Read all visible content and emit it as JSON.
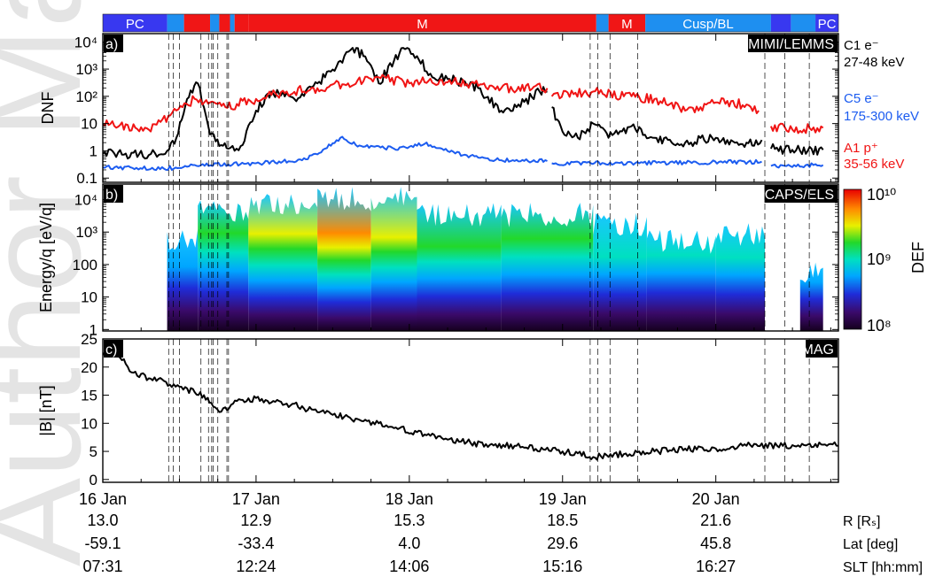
{
  "watermark": "Author Manuscript",
  "region_bar": [
    {
      "label": "PC",
      "start": 0.0,
      "end": 0.42,
      "color": "#3838f0"
    },
    {
      "label": "",
      "start": 0.42,
      "end": 0.53,
      "color": "#1e8ff0"
    },
    {
      "label": "",
      "start": 0.53,
      "end": 0.7,
      "color": "#f01616"
    },
    {
      "label": "",
      "start": 0.7,
      "end": 0.76,
      "color": "#1e8ff0"
    },
    {
      "label": "",
      "start": 0.76,
      "end": 0.83,
      "color": "#f01616"
    },
    {
      "label": "",
      "start": 0.83,
      "end": 0.86,
      "color": "#1e8ff0"
    },
    {
      "label": "",
      "start": 0.86,
      "end": 0.95,
      "color": "#f01616"
    },
    {
      "label": "M",
      "start": 0.95,
      "end": 3.22,
      "color": "#f01616"
    },
    {
      "label": "",
      "start": 3.22,
      "end": 3.3,
      "color": "#1e8ff0"
    },
    {
      "label": "M",
      "start": 3.3,
      "end": 3.54,
      "color": "#f01616"
    },
    {
      "label": "Cusp/BL",
      "start": 3.54,
      "end": 4.36,
      "color": "#1e8ff0"
    },
    {
      "label": "",
      "start": 4.36,
      "end": 4.49,
      "color": "#3838f0"
    },
    {
      "label": "",
      "start": 4.49,
      "end": 4.65,
      "color": "#1e8ff0"
    },
    {
      "label": "PC",
      "start": 4.65,
      "end": 4.8,
      "color": "#3838f0"
    }
  ],
  "event_lines": [
    0.43,
    0.46,
    0.5,
    0.64,
    0.69,
    0.71,
    0.72,
    0.75,
    0.81,
    0.82,
    3.18,
    3.23,
    3.31,
    3.49,
    4.32,
    4.45,
    4.61
  ],
  "panels": {
    "a": {
      "tag": "a)",
      "instrument": "MIMI/LEMMS",
      "ylabel": "DNF"
    },
    "b": {
      "tag": "b)",
      "instrument": "CAPS/ELS",
      "ylabel": "Energy/q [eV/q]",
      "colorbar_label": "DEF"
    },
    "c": {
      "tag": "c)",
      "instrument": "MAG",
      "ylabel": "|B| [nT]"
    }
  },
  "ephemeris": {
    "rows": [
      {
        "label": "R [Rₛ]",
        "values": [
          "13.0",
          "12.9",
          "15.3",
          "18.5",
          "21.6"
        ]
      },
      {
        "label": "Lat [deg]",
        "values": [
          "-59.1",
          "-33.4",
          "4.0",
          "29.6",
          "45.8"
        ]
      },
      {
        "label": "SLT [hh:mm]",
        "values": [
          "07:31",
          "12:24",
          "14:06",
          "15:16",
          "16:27"
        ]
      }
    ]
  },
  "chart_data": [
    {
      "type": "line",
      "panel": "a",
      "yscale": "log",
      "ylim": [
        0.07,
        20000
      ],
      "xlim": [
        0,
        4.8
      ],
      "x_unit": "days since 16 Jan",
      "yticks": [
        {
          "v": 0.1,
          "label": "0.1"
        },
        {
          "v": 1,
          "label": "1"
        },
        {
          "v": 10,
          "label": "10"
        },
        {
          "v": 100,
          "label": "10²"
        },
        {
          "v": 1000,
          "label": "10³"
        },
        {
          "v": 10000,
          "label": "10⁴"
        }
      ],
      "series": [
        {
          "name": "C1 e⁻",
          "range": "27-48 keV",
          "color": "#000000",
          "x": [
            0,
            0.3,
            0.42,
            0.48,
            0.55,
            0.62,
            0.66,
            0.7,
            0.76,
            0.82,
            0.9,
            1.0,
            1.1,
            1.25,
            1.4,
            1.55,
            1.63,
            1.7,
            1.8,
            1.9,
            1.96,
            2.05,
            2.15,
            2.3,
            2.45,
            2.6,
            2.7,
            2.85,
            2.9,
            null,
            2.93,
            3.0,
            3.1,
            3.2,
            3.3,
            3.45,
            3.6,
            3.8,
            4.0,
            4.2,
            4.3,
            null,
            4.36,
            4.6,
            4.7
          ],
          "y": [
            0.8,
            0.7,
            1.0,
            3,
            80,
            300,
            40,
            4,
            1.5,
            1.2,
            1.5,
            30,
            150,
            80,
            300,
            2000,
            6000,
            3000,
            300,
            2000,
            6000,
            3000,
            500,
            400,
            200,
            30,
            40,
            150,
            150,
            null,
            40,
            5,
            3,
            10,
            3,
            8,
            3,
            2,
            3,
            2,
            2.5,
            null,
            1.2,
            1.0,
            1.1
          ]
        },
        {
          "name": "C5 e⁻",
          "range": "175-300 keV",
          "color": "#1c5cf0",
          "x": [
            0,
            0.4,
            0.6,
            1.0,
            1.3,
            1.45,
            1.55,
            1.7,
            1.9,
            2.1,
            2.3,
            2.6,
            2.9,
            null,
            2.93,
            3.5,
            4.3,
            null,
            4.36,
            4.7
          ],
          "y": [
            0.25,
            0.22,
            0.3,
            0.35,
            0.45,
            1.2,
            3,
            1.4,
            1.2,
            1.8,
            0.8,
            0.45,
            0.42,
            null,
            0.35,
            0.35,
            0.4,
            null,
            0.28,
            0.3
          ]
        },
        {
          "name": "A1 p⁺",
          "range": "35-56 keV",
          "color": "#f01414",
          "x": [
            0,
            0.3,
            0.44,
            0.52,
            0.6,
            0.7,
            0.8,
            1.0,
            1.2,
            1.4,
            1.6,
            1.8,
            2.0,
            2.2,
            2.4,
            2.6,
            2.9,
            null,
            2.93,
            3.2,
            3.4,
            3.6,
            3.8,
            4.0,
            4.2,
            4.28,
            null,
            4.36,
            4.5,
            4.7
          ],
          "y": [
            10,
            6,
            20,
            40,
            80,
            60,
            40,
            80,
            150,
            200,
            300,
            500,
            300,
            400,
            300,
            200,
            200,
            null,
            100,
            150,
            100,
            80,
            30,
            60,
            50,
            30,
            null,
            8,
            6,
            7
          ]
        }
      ]
    },
    {
      "type": "heatmap",
      "panel": "b",
      "yscale": "log",
      "ylim": [
        0.9,
        30000
      ],
      "xlim": [
        0,
        4.8
      ],
      "x_unit": "days since 16 Jan",
      "yticks": [
        {
          "v": 1,
          "label": "1"
        },
        {
          "v": 10,
          "label": "10"
        },
        {
          "v": 100,
          "label": "100"
        },
        {
          "v": 1000,
          "label": "10³"
        },
        {
          "v": 10000,
          "label": "10⁴"
        }
      ],
      "colorbar": {
        "scale": "log",
        "range": [
          100000000.0,
          10000000000.0
        ],
        "ticks": [
          "10⁸",
          "10⁹",
          "10¹⁰"
        ]
      },
      "columns": [
        {
          "x": [
            0.42,
            0.62
          ],
          "top": 1500,
          "peak": 0.45
        },
        {
          "x": [
            0.62,
            0.95
          ],
          "top": 10000,
          "peak": 0.62
        },
        {
          "x": [
            0.95,
            1.4
          ],
          "top": 15000,
          "peak": 0.78
        },
        {
          "x": [
            1.4,
            1.75
          ],
          "top": 25000,
          "peak": 0.95
        },
        {
          "x": [
            1.75,
            2.05
          ],
          "top": 25000,
          "peak": 0.85
        },
        {
          "x": [
            2.05,
            2.6
          ],
          "top": 8000,
          "peak": 0.7
        },
        {
          "x": [
            2.6,
            3.2
          ],
          "top": 8000,
          "peak": 0.65
        },
        {
          "x": [
            3.2,
            3.55
          ],
          "top": 4000,
          "peak": 0.6
        },
        {
          "x": [
            3.55,
            4.0
          ],
          "top": 1200,
          "peak": 0.5
        },
        {
          "x": [
            4.0,
            4.32
          ],
          "top": 2000,
          "peak": 0.55
        },
        {
          "x": [
            4.55,
            4.7
          ],
          "top": 150,
          "peak": 0.4
        }
      ]
    },
    {
      "type": "line",
      "panel": "c",
      "yscale": "linear",
      "ylim": [
        -0.5,
        25
      ],
      "xlim": [
        0,
        4.8
      ],
      "x_unit": "days since 16 Jan",
      "yticks": [
        {
          "v": 0,
          "label": "0"
        },
        {
          "v": 5,
          "label": "5"
        },
        {
          "v": 10,
          "label": "10"
        },
        {
          "v": 15,
          "label": "15"
        },
        {
          "v": 20,
          "label": "20"
        },
        {
          "v": 25,
          "label": "25"
        }
      ],
      "series": [
        {
          "name": "|B|",
          "color": "#000000",
          "x": [
            0,
            0.1,
            0.2,
            0.3,
            0.4,
            0.5,
            0.6,
            0.66,
            0.72,
            0.76,
            0.85,
            1.0,
            1.2,
            1.5,
            1.8,
            2.1,
            2.4,
            2.7,
            3.0,
            3.2,
            3.4,
            3.6,
            3.8,
            4.0,
            4.2,
            4.4,
            4.6,
            4.8
          ],
          "y": [
            22.5,
            22,
            19,
            18,
            17.5,
            16.5,
            15.5,
            15,
            13,
            12,
            13.5,
            14.5,
            13.5,
            11.5,
            10,
            8,
            6.5,
            6,
            5,
            4,
            4.5,
            5,
            5.5,
            5.5,
            6,
            6,
            6.2,
            6
          ]
        }
      ]
    }
  ],
  "xaxis": {
    "ticks": [
      {
        "v": 0,
        "label": "16 Jan"
      },
      {
        "v": 1,
        "label": "17 Jan"
      },
      {
        "v": 2,
        "label": "18 Jan"
      },
      {
        "v": 3,
        "label": "19 Jan"
      },
      {
        "v": 4,
        "label": "20 Jan"
      }
    ]
  }
}
